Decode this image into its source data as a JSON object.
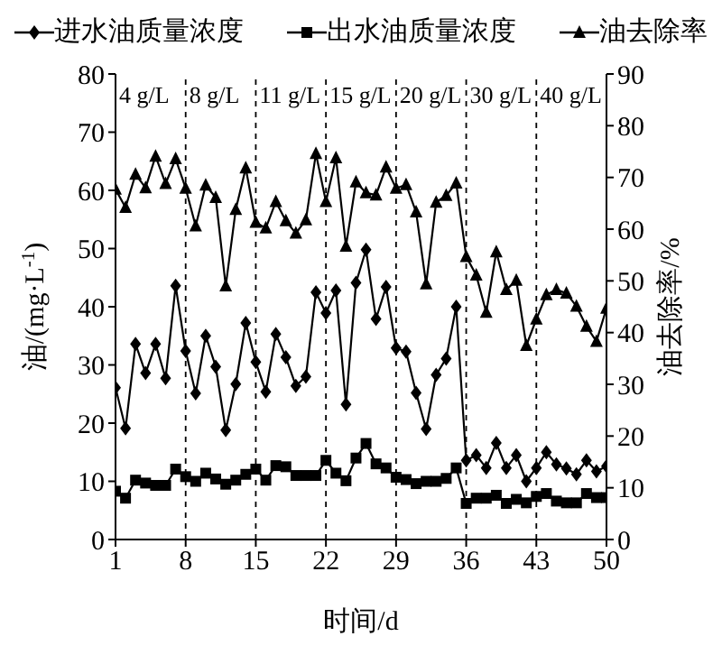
{
  "chart_data": {
    "type": "line",
    "xlabel": "时间/d",
    "ylabel": "油/(mg·L$^{-1}$)",
    "y2label": "油去除率/%",
    "x": [
      1,
      2,
      3,
      4,
      5,
      6,
      7,
      8,
      9,
      10,
      11,
      12,
      13,
      14,
      15,
      16,
      17,
      18,
      19,
      20,
      21,
      22,
      23,
      24,
      25,
      26,
      27,
      28,
      29,
      30,
      31,
      32,
      33,
      34,
      35,
      36,
      37,
      38,
      39,
      40,
      41,
      42,
      43,
      44,
      45,
      46,
      47,
      48,
      49,
      50
    ],
    "series": [
      {
        "name": "进水油质量浓度",
        "color": "#000000",
        "marker": "diamond",
        "values": [
          26.1,
          19.1,
          33.6,
          28.6,
          33.6,
          27.7,
          43.6,
          32.4,
          25.1,
          35,
          29.7,
          18.8,
          26.7,
          37.2,
          30.5,
          25.4,
          35.3,
          31.3,
          26.4,
          28,
          42.5,
          38.9,
          42.8,
          23.2,
          44.1,
          49.8,
          37.9,
          43.4,
          32.9,
          32.3,
          25.2,
          19,
          28.3,
          31.1,
          40,
          13.6,
          14.5,
          12.3,
          16.6,
          12.3,
          14.5,
          10,
          12.3,
          15,
          12.9,
          12.2,
          11.2,
          13.6,
          11.7,
          12.6
        ]
      },
      {
        "name": "出水油质量浓度",
        "color": "#000000",
        "marker": "square",
        "values": [
          8.3,
          7.1,
          10.2,
          9.7,
          9.3,
          9.3,
          12.1,
          10.8,
          10,
          11.4,
          10.4,
          9.5,
          10.2,
          11.2,
          12.1,
          10.2,
          12.7,
          12.5,
          11,
          11,
          11,
          13.6,
          11.4,
          10.1,
          14,
          16.5,
          13,
          12.3,
          10.7,
          10.3,
          9.6,
          10,
          10,
          10.5,
          12.3,
          6.2,
          7.1,
          7.1,
          7.6,
          6.2,
          6.9,
          6.3,
          7.4,
          7.9,
          6.6,
          6.3,
          6.3,
          7.9,
          7.2,
          7.2
        ]
      },
      {
        "name": "油去除率",
        "color": "#000000",
        "marker": "triangle",
        "axis": "y2",
        "values": [
          67.7,
          64.2,
          70.6,
          68,
          74.1,
          68.8,
          73.6,
          67.9,
          60.6,
          68.5,
          66.1,
          49,
          63.8,
          71.8,
          61.3,
          60.2,
          65.3,
          61.6,
          59.2,
          61.8,
          74.6,
          65.3,
          73.8,
          56.7,
          69.1,
          67,
          66.6,
          72,
          67.9,
          68.6,
          63.3,
          49.4,
          65.2,
          66.5,
          68.9,
          54.7,
          51.1,
          43.9,
          55.6,
          48.3,
          50.1,
          37.5,
          42.6,
          47.3,
          48.3,
          47.6,
          45.1,
          41.2,
          38.3,
          44.7
        ]
      }
    ],
    "xlim": [
      1,
      50
    ],
    "xticks": [
      1,
      8,
      15,
      22,
      29,
      36,
      43,
      50
    ],
    "ylim": [
      0,
      80
    ],
    "yticks": [
      0,
      10,
      20,
      30,
      40,
      50,
      60,
      70,
      80
    ],
    "y2lim": [
      0,
      90
    ],
    "y2ticks": [
      0,
      10,
      20,
      30,
      40,
      50,
      60,
      70,
      80,
      90
    ],
    "ref_lines": [
      {
        "axis": "x",
        "value": 8,
        "line_style": "dashed",
        "color": "#000000"
      },
      {
        "axis": "x",
        "value": 15,
        "line_style": "dashed",
        "color": "#000000"
      },
      {
        "axis": "x",
        "value": 22,
        "line_style": "dashed",
        "color": "#000000"
      },
      {
        "axis": "x",
        "value": 29,
        "line_style": "dashed",
        "color": "#000000"
      },
      {
        "axis": "x",
        "value": 36,
        "line_style": "dashed",
        "color": "#000000"
      },
      {
        "axis": "x",
        "value": 43,
        "line_style": "dashed",
        "color": "#000000"
      }
    ],
    "annotations": [
      "4 g/L",
      "8 g/L",
      "11 g/L",
      "15 g/L",
      "20 g/L",
      "30 g/L",
      "40 g/L"
    ],
    "legend": "top",
    "grid": false,
    "line_style": "solid"
  }
}
